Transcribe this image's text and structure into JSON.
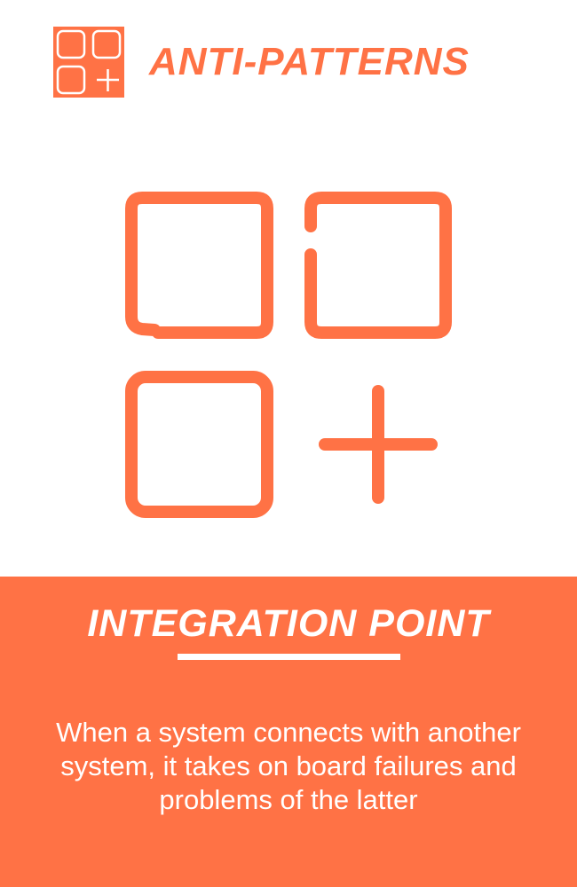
{
  "header": {
    "title": "ANTI-PATTERNS",
    "logo_icon": "apps-add-icon"
  },
  "hero": {
    "icon": "apps-add-icon"
  },
  "card": {
    "title": "INTEGRATION POINT",
    "description": "When a system connects with another system, it takes on board failures and problems of the latter"
  },
  "colors": {
    "accent": "#ff7245",
    "background": "#ffffff",
    "text_on_accent": "#ffffff"
  }
}
